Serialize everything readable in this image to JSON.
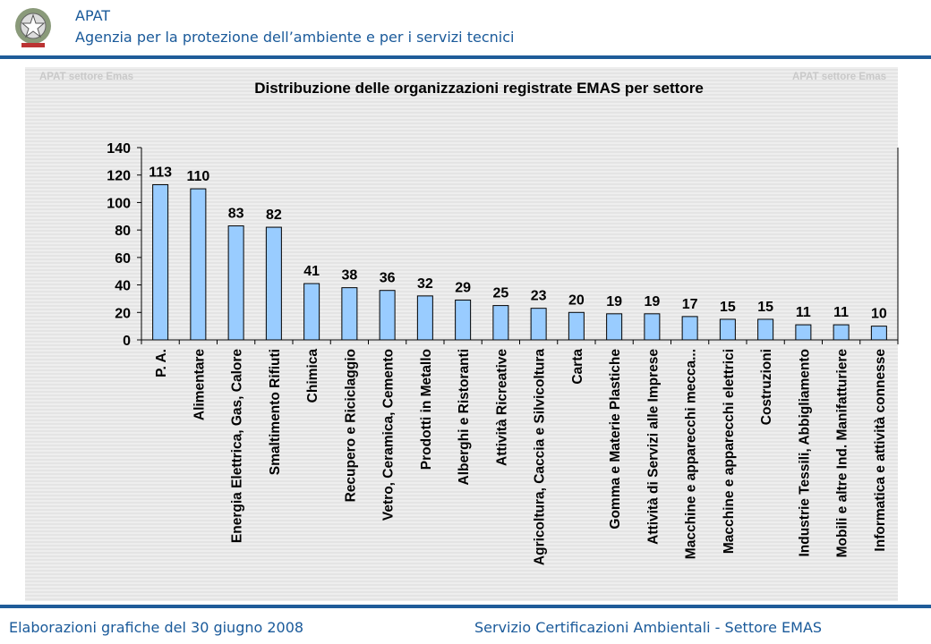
{
  "header": {
    "org_short": "APAT",
    "org_full": "Agenzia per la protezione dell’ambiente e per i servizi tecnici",
    "logo_icon": "italian-republic-emblem-icon"
  },
  "watermark": "APAT settore Emas",
  "footer": {
    "left": "Elaborazioni grafiche del 30 giugno 2008",
    "right": "Servizio Certificazioni Ambientali - Settore EMAS"
  },
  "colors": {
    "accent": "#1f5c99",
    "bar": "#99ccff"
  },
  "chart_data": {
    "type": "bar",
    "title": "Distribuzione delle organizzazioni registrate EMAS per settore",
    "xlabel": "",
    "ylabel": "",
    "ylim": [
      0,
      140
    ],
    "yticks": [
      "0",
      "20",
      "40",
      "60",
      "80",
      "100",
      "120",
      "140"
    ],
    "grid": false,
    "categories": [
      "P. A.",
      "Alimentare",
      "Energia Elettrica, Gas, Calore",
      "Smaltimento Rifiuti",
      "Chimica",
      "Recupero e Riciclaggio",
      "Vetro, Ceramica, Cemento",
      "Prodotti in Metallo",
      "Alberghi e Ristoranti",
      "Attività Ricreative",
      "Agricoltura, Caccia e Silvicoltura",
      "Carta",
      "Gomma e Materie Plastiche",
      "Attività di Servizi alle Imprese",
      "Macchine e apparecchi mecca...",
      "Macchine e apparecchi elettrici",
      "Costruzioni",
      "Industrie Tessili, Abbigliamento",
      "Mobili e altre Ind. Manifatturiere",
      "Informatica e attività connesse"
    ],
    "values": [
      113,
      110,
      83,
      82,
      41,
      38,
      36,
      32,
      29,
      25,
      23,
      20,
      19,
      19,
      17,
      15,
      15,
      11,
      11,
      10
    ]
  }
}
